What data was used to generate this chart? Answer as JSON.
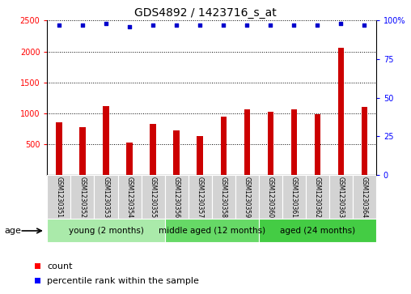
{
  "title": "GDS4892 / 1423716_s_at",
  "samples": [
    "GSM1230351",
    "GSM1230352",
    "GSM1230353",
    "GSM1230354",
    "GSM1230355",
    "GSM1230356",
    "GSM1230357",
    "GSM1230358",
    "GSM1230359",
    "GSM1230360",
    "GSM1230361",
    "GSM1230362",
    "GSM1230363",
    "GSM1230364"
  ],
  "counts": [
    850,
    780,
    1120,
    530,
    830,
    720,
    630,
    950,
    1060,
    1020,
    1060,
    990,
    2060,
    1100
  ],
  "percentiles": [
    97,
    97,
    98,
    96,
    97,
    97,
    97,
    97,
    97,
    97,
    97,
    97,
    98,
    97
  ],
  "bar_color": "#cc0000",
  "dot_color": "#0000cc",
  "ylim_left": [
    0,
    2500
  ],
  "ylim_right": [
    0,
    100
  ],
  "yticks_left": [
    500,
    1000,
    1500,
    2000,
    2500
  ],
  "yticks_right": [
    0,
    25,
    50,
    75,
    100
  ],
  "groups": [
    {
      "label": "young (2 months)",
      "indices": [
        0,
        1,
        2,
        3,
        4
      ],
      "color": "#aaeaaa"
    },
    {
      "label": "middle aged (12 months)",
      "indices": [
        5,
        6,
        7,
        8
      ],
      "color": "#66d966"
    },
    {
      "label": "aged (24 months)",
      "indices": [
        9,
        10,
        11,
        12,
        13
      ],
      "color": "#44cc44"
    }
  ],
  "age_label": "age",
  "legend_count_label": "count",
  "legend_percentile_label": "percentile rank within the sample",
  "bar_width": 0.25,
  "title_fontsize": 10,
  "tick_fontsize": 7,
  "sample_fontsize": 5.5,
  "group_fontsize": 7.5,
  "legend_fontsize": 8
}
